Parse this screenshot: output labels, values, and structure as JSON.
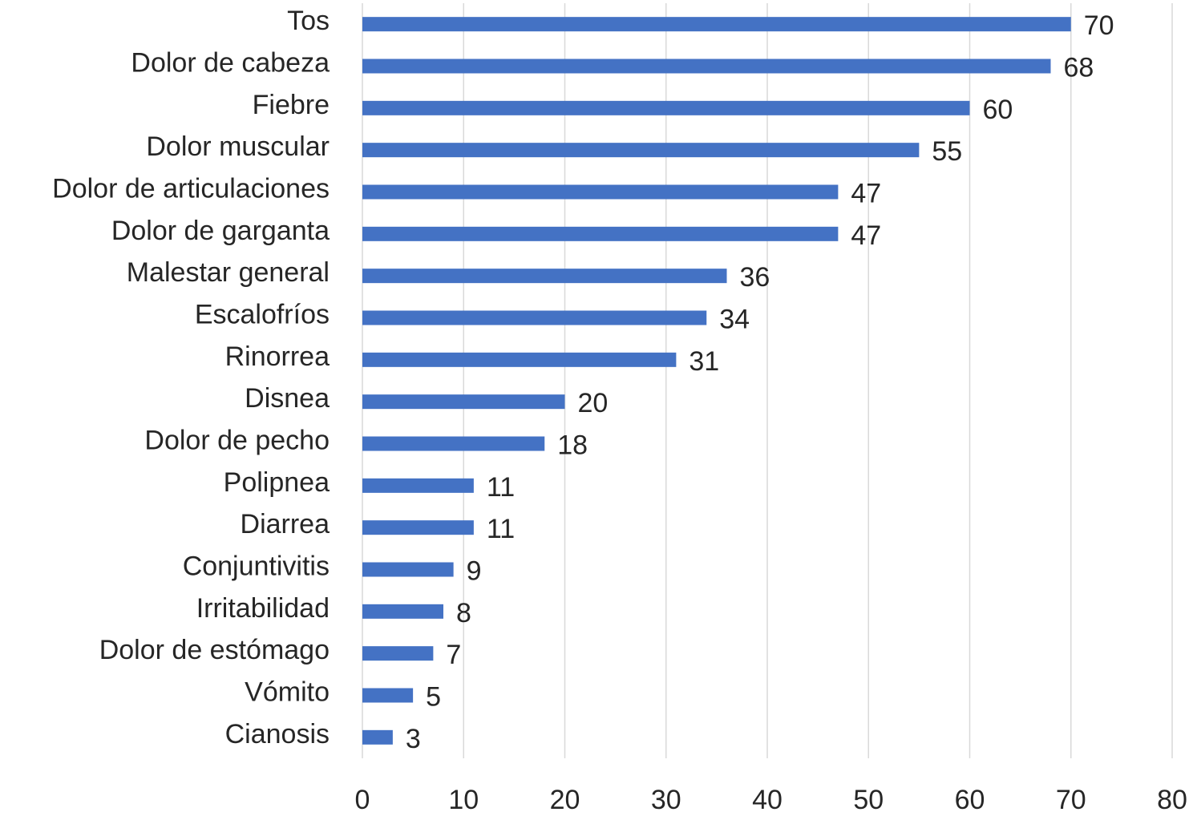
{
  "chart_data": {
    "type": "bar",
    "orientation": "horizontal",
    "categories": [
      "Tos",
      "Dolor de cabeza",
      "Fiebre",
      "Dolor muscular",
      "Dolor de articulaciones",
      "Dolor de garganta",
      "Malestar general",
      "Escalofríos",
      "Rinorrea",
      "Disnea",
      "Dolor de pecho",
      "Polipnea",
      "Diarrea",
      "Conjuntivitis",
      "Irritabilidad",
      "Dolor de estómago",
      "Vómito",
      "Cianosis"
    ],
    "values": [
      70,
      68,
      60,
      55,
      47,
      47,
      36,
      34,
      31,
      20,
      18,
      11,
      11,
      9,
      8,
      7,
      5,
      3
    ],
    "color": "#4472c4",
    "xlim": [
      0,
      80
    ],
    "xticks": [
      0,
      10,
      20,
      30,
      40,
      50,
      60,
      70,
      80
    ],
    "grid": true
  }
}
